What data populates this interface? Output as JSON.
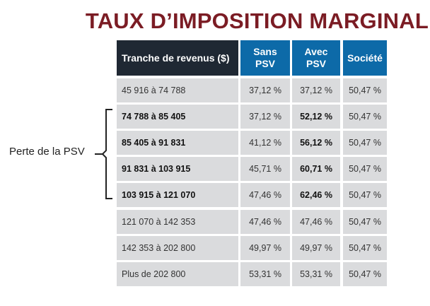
{
  "title": "TAUX D’IMPOSITION MARGINAL",
  "annotation": "Perte de la PSV",
  "headers": {
    "tranche": "Tranche de revenus ($)",
    "sans_l1": "Sans",
    "sans_l2": "PSV",
    "avec_l1": "Avec",
    "avec_l2": "PSV",
    "societe": "Société"
  },
  "rows": [
    {
      "tranche": "45 916 à 74 788",
      "sans": "37,12 %",
      "avec": "37,12 %",
      "societe": "50,47 %",
      "bold": false
    },
    {
      "tranche": "74 788 à 85 405",
      "sans": "37,12 %",
      "avec": "52,12 %",
      "societe": "50,47 %",
      "bold": true
    },
    {
      "tranche": "85 405 à 91 831",
      "sans": "41,12 %",
      "avec": "56,12 %",
      "societe": "50,47 %",
      "bold": true
    },
    {
      "tranche": "91 831 à 103 915",
      "sans": "45,71 %",
      "avec": "60,71 %",
      "societe": "50,47 %",
      "bold": true
    },
    {
      "tranche": "103 915 à 121 070",
      "sans": "47,46 %",
      "avec": "62,46 %",
      "societe": "50,47 %",
      "bold": true
    },
    {
      "tranche": "121 070 à 142 353",
      "sans": "47,46 %",
      "avec": "47,46 %",
      "societe": "50,47 %",
      "bold": false
    },
    {
      "tranche": "142 353 à 202 800",
      "sans": "49,97 %",
      "avec": "49,97 %",
      "societe": "50,47 %",
      "bold": false
    },
    {
      "tranche": "Plus de 202 800",
      "sans": "53,31 %",
      "avec": "53,31 %",
      "societe": "50,47 %",
      "bold": false
    }
  ],
  "colors": {
    "title": "#7b1c24",
    "header_dark": "#1f2833",
    "header_blue": "#0d6aa8",
    "cell": "#dadbdd"
  }
}
